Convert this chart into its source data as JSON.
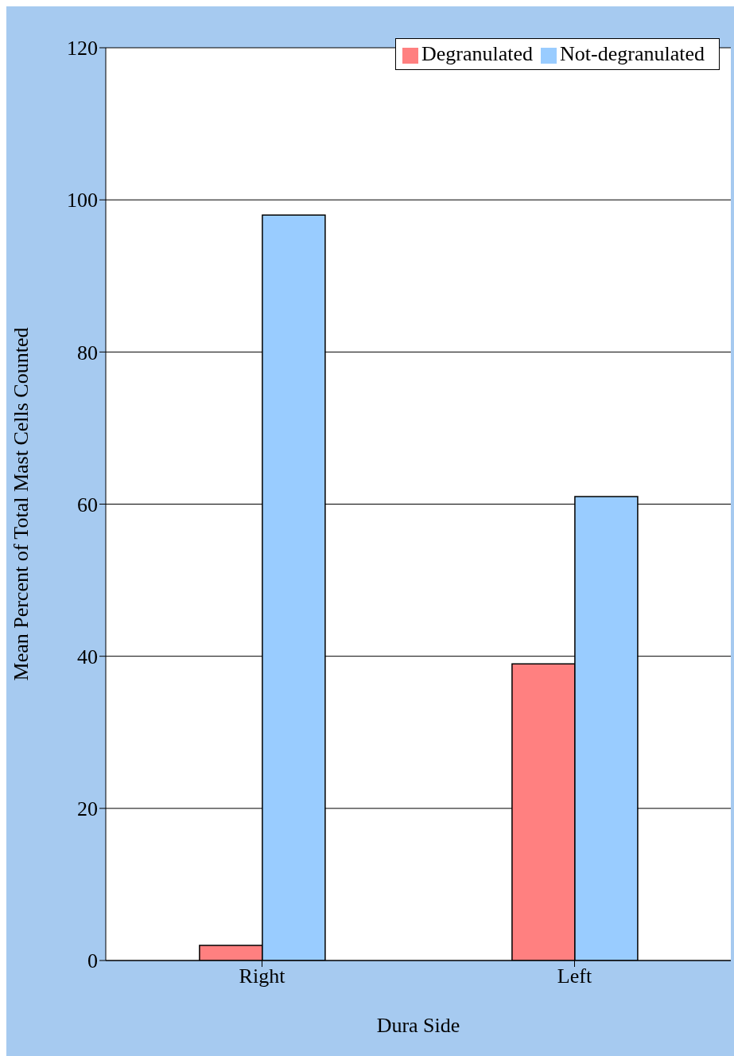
{
  "chart_data": {
    "type": "bar",
    "xlabel": "Dura Side",
    "ylabel": "Mean Percent of Total Mast Cells Counted",
    "categories": [
      "Right",
      "Left"
    ],
    "series": [
      {
        "name": "Degranulated",
        "color": "#ff8080",
        "values": [
          2,
          39
        ]
      },
      {
        "name": "Not-degranulated",
        "color": "#99ccff",
        "values": [
          98,
          61
        ]
      }
    ],
    "ylim": [
      0,
      120
    ],
    "yticks": [
      0,
      20,
      40,
      60,
      80,
      100,
      120
    ],
    "grid": "y",
    "legend": "top right"
  }
}
